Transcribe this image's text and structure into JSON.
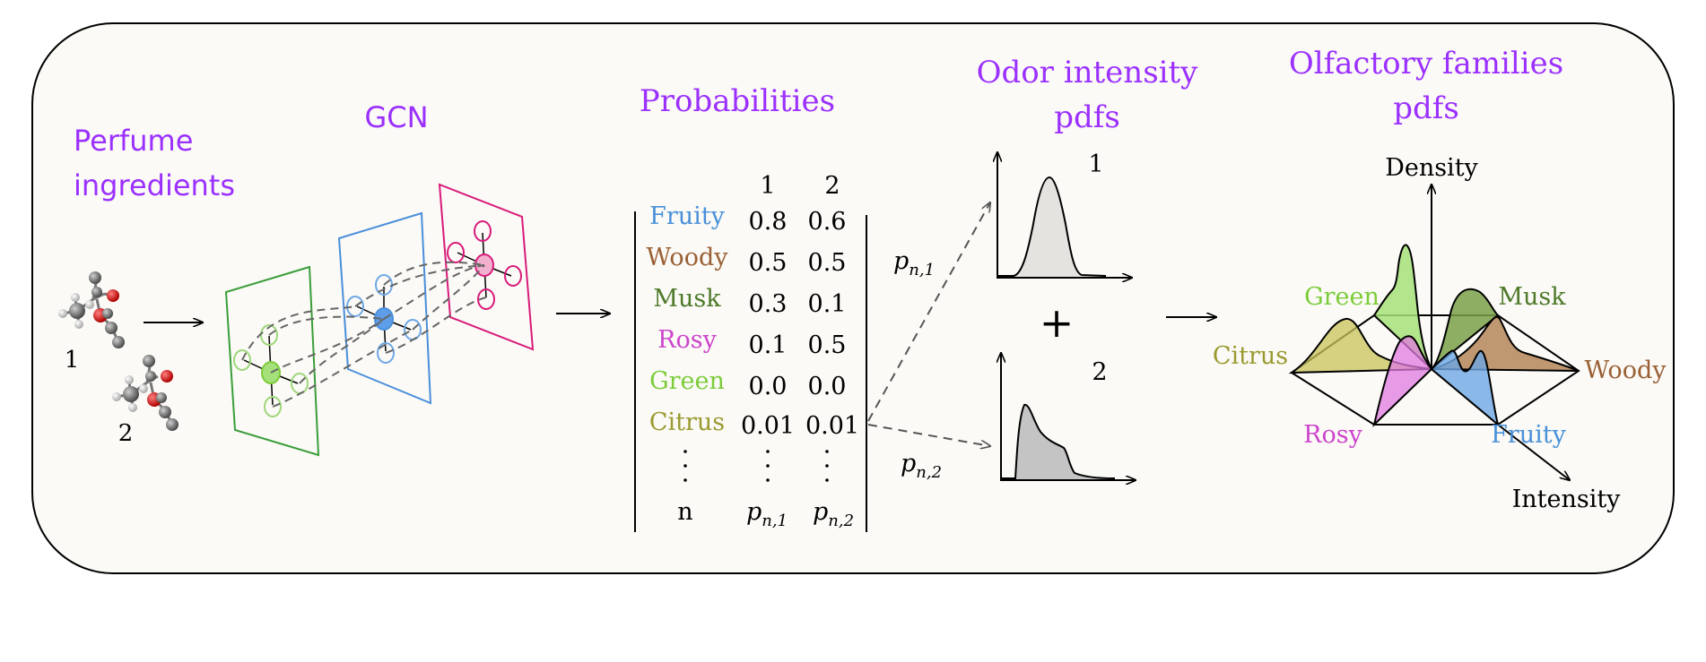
{
  "colors": {
    "panel_bg": "#fbfaf6",
    "title": "#9b30ff",
    "green_layer": "#3a9e3a",
    "blue_layer": "#4a8fdb",
    "pink_layer": "#d81b7a",
    "fruity": "#4a90d9",
    "woody": "#9a6035",
    "musk": "#4e7a2a",
    "rosy": "#cc44cc",
    "green": "#7ccc3a",
    "citrus": "#9a9a30"
  },
  "titles": {
    "perfume_line1": "Perfume",
    "perfume_line2": "ingredients",
    "gcn": "GCN",
    "probabilities": "Probabilities",
    "odor_line1": "Odor intensity",
    "odor_line2": "pdfs",
    "olf_line1": "Olfactory families",
    "olf_line2": "pdfs"
  },
  "molecules": {
    "label1": "1",
    "label2": "2"
  },
  "table": {
    "col_headers": [
      "1",
      "2"
    ],
    "rows": [
      {
        "family": "Fruity",
        "v1": "0.8",
        "v2": "0.6"
      },
      {
        "family": "Woody",
        "v1": "0.5",
        "v2": "0.5"
      },
      {
        "family": "Musk",
        "v1": "0.3",
        "v2": "0.1"
      },
      {
        "family": "Rosy",
        "v1": "0.1",
        "v2": "0.5"
      },
      {
        "family": "Green",
        "v1": "0.0",
        "v2": "0.0"
      },
      {
        "family": "Citrus",
        "v1": "0.01",
        "v2": "0.01"
      }
    ],
    "last_row": {
      "family": "n",
      "v1": "p",
      "v1_sub": "n,1",
      "v2": "p",
      "v2_sub": "n,2"
    }
  },
  "arrows": {
    "p1": "p",
    "p1_sub": "n,1",
    "p2": "p",
    "p2_sub": "n,2"
  },
  "odor_plots": {
    "label1": "1",
    "label2": "2",
    "plus": "+"
  },
  "olfactory": {
    "density_label": "Density",
    "intensity_label": "Intensity",
    "families": {
      "green": "Green",
      "musk": "Musk",
      "citrus": "Citrus",
      "woody": "Woody",
      "rosy": "Rosy",
      "fruity": "Fruity"
    }
  }
}
